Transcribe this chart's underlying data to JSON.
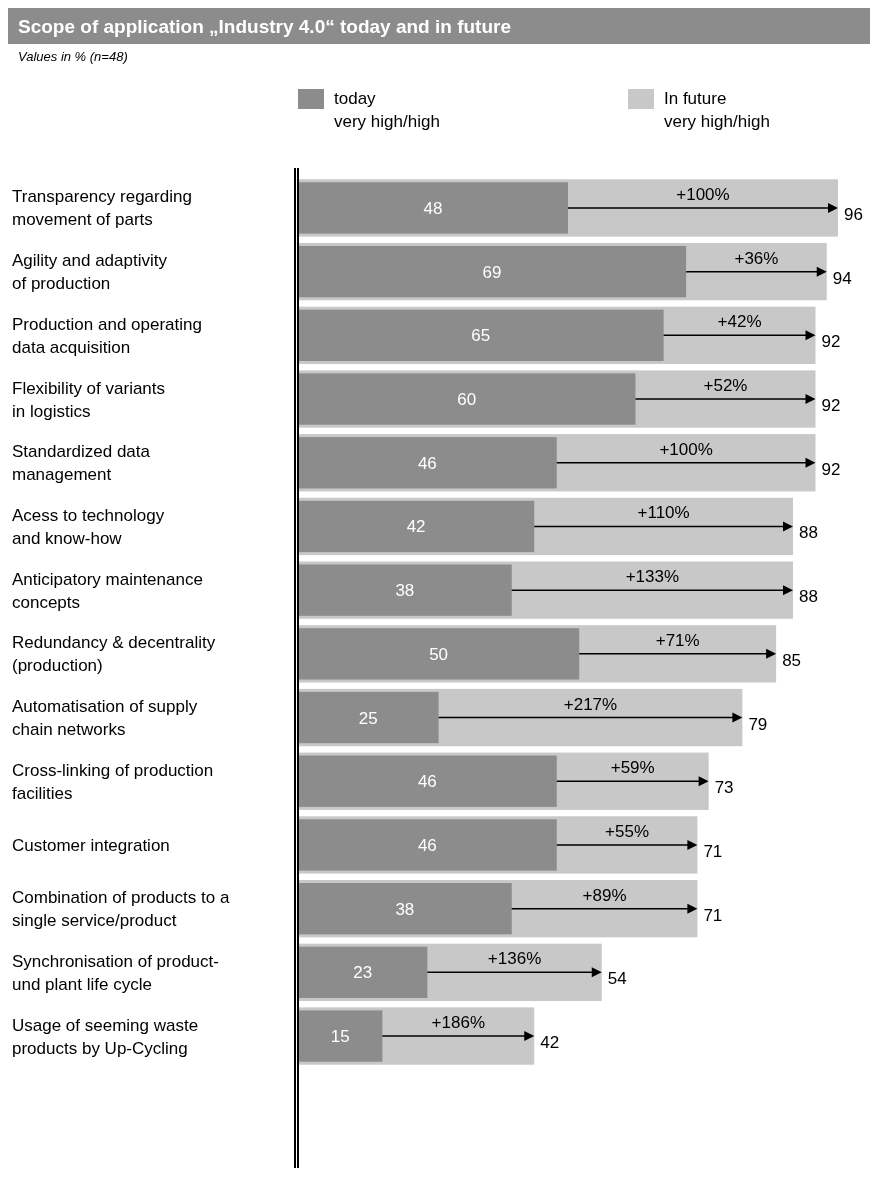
{
  "chart_data": {
    "type": "bar",
    "orientation": "horizontal",
    "title": "Scope of application „Industry 4.0“ today and in future",
    "subtitle": "Values in % (n=48)",
    "categories": [
      "Transparency regarding\nmovement of parts",
      "Agility and adaptivity\nof production",
      "Production and operating\ndata acquisition",
      "Flexibility of variants\nin logistics",
      "Standardized data\nmanagement",
      "Acess to technology\nand know-how",
      "Anticipatory maintenance\nconcepts",
      "Redundancy & decentrality\n(production)",
      "Automatisation of supply\nchain networks",
      "Cross-linking of production\nfacilities",
      "Customer integration",
      "Combination of products to a\nsingle service/product",
      "Synchronisation of product-\nund plant life cycle",
      "Usage of seeming waste\nproducts by Up-Cycling"
    ],
    "series": [
      {
        "name": "In future\nvery high/high",
        "color": "#c8c8c8",
        "values": [
          96,
          94,
          92,
          92,
          92,
          88,
          88,
          85,
          79,
          73,
          71,
          71,
          54,
          42
        ]
      },
      {
        "name": "today\nvery high/high",
        "color": "#8c8c8c",
        "values": [
          48,
          69,
          65,
          60,
          46,
          42,
          38,
          50,
          25,
          46,
          46,
          38,
          23,
          15
        ]
      }
    ],
    "data_labels": true,
    "legend": "top",
    "annotations": [
      "+100%",
      "+36%",
      "+42%",
      "+52%",
      "+100%",
      "+110%",
      "+133%",
      "+71%",
      "+217%",
      "+59%",
      "+55%",
      "+89%",
      "+136%",
      "+186%"
    ]
  }
}
